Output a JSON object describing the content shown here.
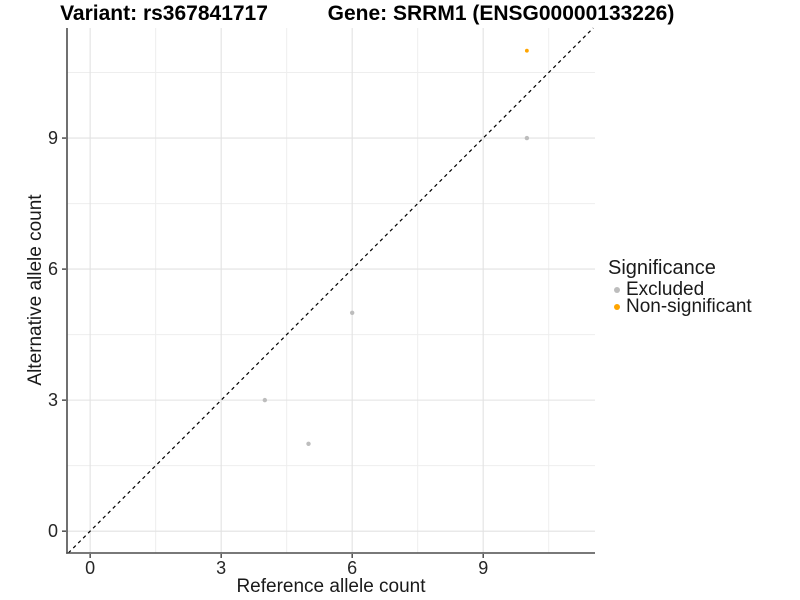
{
  "chart_data": {
    "type": "scatter",
    "title_left": "Variant: rs367841717",
    "title_right": "Gene: SRRM1 (ENSG00000133226)",
    "xlabel": "Reference allele count",
    "ylabel": "Alternative allele count",
    "xlim": [
      -0.53,
      11.56
    ],
    "ylim": [
      -0.5,
      11.52
    ],
    "xticks": [
      0,
      3,
      6,
      9
    ],
    "yticks": [
      0,
      3,
      6,
      9
    ],
    "xminor": [
      1.5,
      4.5,
      7.5,
      10.5
    ],
    "yminor": [
      1.5,
      4.5,
      7.5,
      10.5
    ],
    "grid": true,
    "legend": {
      "title": "Significance",
      "position": "right"
    },
    "identity_line": {
      "slope": 1,
      "intercept": 0,
      "style": "dashed",
      "color": "#000000"
    },
    "series": [
      {
        "name": "Excluded",
        "color": "#BDBDBD",
        "marker_radius": 2.2,
        "points": [
          [
            4,
            3
          ],
          [
            5,
            2
          ],
          [
            6,
            5
          ],
          [
            10,
            9
          ]
        ]
      },
      {
        "name": "Non-significant",
        "color": "#FFA500",
        "marker_radius": 1.9,
        "points": [
          [
            10,
            11
          ]
        ]
      }
    ],
    "colors": {
      "grid_major": "#E2E2E2",
      "grid_minor": "#EEEEEE",
      "axis_line": "#4D4D4D",
      "tick_mark": "#333333",
      "tick_text": "#262626",
      "background": "#FFFFFF"
    }
  }
}
